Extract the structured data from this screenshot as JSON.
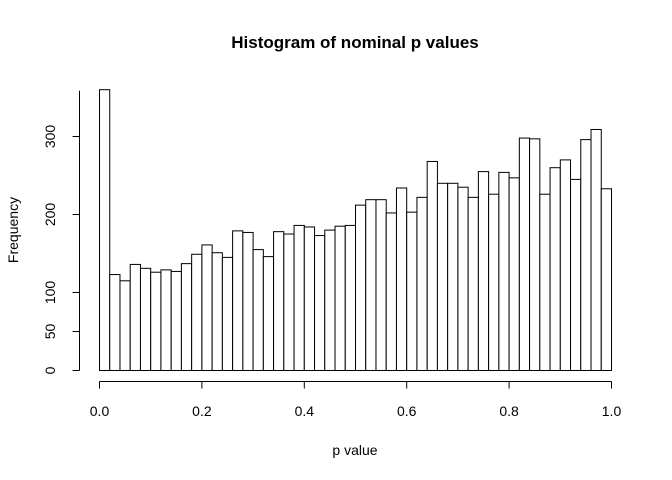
{
  "chart_data": {
    "type": "bar",
    "title": "Histogram of nominal p values",
    "xlabel": "p value",
    "ylabel": "Frequency",
    "xlim": [
      0,
      1
    ],
    "ylim": [
      0,
      358
    ],
    "bin_width": 0.02,
    "bins_start": [
      0.0,
      0.02,
      0.04,
      0.06,
      0.08,
      0.1,
      0.12,
      0.14,
      0.16,
      0.18,
      0.2,
      0.22,
      0.24,
      0.26,
      0.28,
      0.3,
      0.32,
      0.34,
      0.36,
      0.38,
      0.4,
      0.42,
      0.44,
      0.46,
      0.48,
      0.5,
      0.52,
      0.54,
      0.56,
      0.58,
      0.6,
      0.62,
      0.64,
      0.66,
      0.68,
      0.7,
      0.72,
      0.74,
      0.76,
      0.78,
      0.8,
      0.82,
      0.84,
      0.86,
      0.88,
      0.9,
      0.92,
      0.94,
      0.96,
      0.98
    ],
    "values": [
      360,
      123,
      115,
      136,
      131,
      126,
      129,
      127,
      137,
      149,
      161,
      151,
      145,
      179,
      177,
      155,
      146,
      178,
      175,
      186,
      184,
      173,
      180,
      185,
      186,
      212,
      219,
      219,
      202,
      234,
      203,
      222,
      268,
      240,
      240,
      235,
      222,
      255,
      226,
      254,
      247,
      298,
      297,
      226,
      260,
      270,
      245,
      296,
      309,
      233
    ],
    "x_ticks": [
      "0.0",
      "0.2",
      "0.4",
      "0.6",
      "0.8",
      "1.0"
    ],
    "x_tick_values": [
      0,
      0.2,
      0.4,
      0.6,
      0.8,
      1.0
    ],
    "y_ticks": [
      "0",
      "50",
      "100",
      "200",
      "300"
    ],
    "y_tick_values": [
      0,
      50,
      100,
      200,
      300
    ],
    "grid": false,
    "legend": "none"
  }
}
